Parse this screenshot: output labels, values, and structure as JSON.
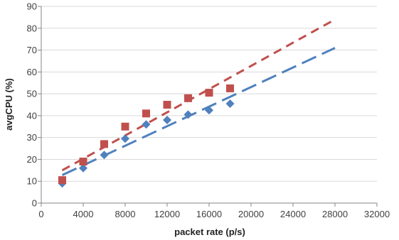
{
  "chart_data": {
    "type": "scatter",
    "xlabel": "packet rate (p/s)",
    "ylabel": "avgCPU (%)",
    "xlim": [
      0,
      32000
    ],
    "ylim": [
      0,
      90
    ],
    "xticks": [
      0,
      4000,
      8000,
      12000,
      16000,
      20000,
      24000,
      28000,
      32000
    ],
    "yticks": [
      0,
      10,
      20,
      30,
      40,
      50,
      60,
      70,
      80,
      90
    ],
    "grid": "horizontal",
    "legend": "none",
    "series": [
      {
        "marker": "diamond",
        "color": "#4F81BD",
        "points": [
          {
            "x": 2000,
            "y": 9
          },
          {
            "x": 4000,
            "y": 16
          },
          {
            "x": 6000,
            "y": 22
          },
          {
            "x": 8000,
            "y": 29.5
          },
          {
            "x": 10000,
            "y": 36
          },
          {
            "x": 12000,
            "y": 38
          },
          {
            "x": 14000,
            "y": 40.5
          },
          {
            "x": 16000,
            "y": 42.5
          },
          {
            "x": 18000,
            "y": 45.5
          }
        ],
        "trendline": {
          "style": "dashed",
          "color": "#4F81BD",
          "from": {
            "x": 2000,
            "y": 12.8
          },
          "to": {
            "x": 28000,
            "y": 71
          }
        }
      },
      {
        "marker": "square",
        "color": "#C0504D",
        "points": [
          {
            "x": 2000,
            "y": 10.5
          },
          {
            "x": 4000,
            "y": 19
          },
          {
            "x": 6000,
            "y": 27
          },
          {
            "x": 8000,
            "y": 35
          },
          {
            "x": 10000,
            "y": 41
          },
          {
            "x": 12000,
            "y": 45
          },
          {
            "x": 14000,
            "y": 48
          },
          {
            "x": 16000,
            "y": 50.5
          },
          {
            "x": 18000,
            "y": 52.5
          }
        ],
        "trendline": {
          "style": "dashed",
          "color": "#C0504D",
          "from": {
            "x": 2000,
            "y": 15
          },
          "to": {
            "x": 28000,
            "y": 84
          }
        }
      }
    ]
  }
}
